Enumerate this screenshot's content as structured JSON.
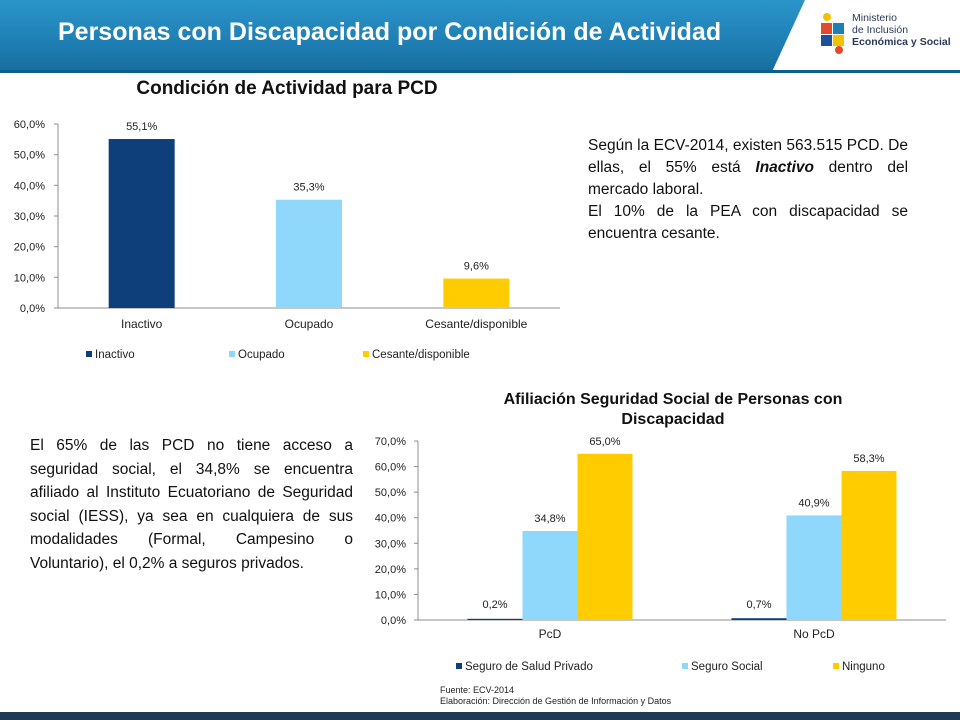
{
  "banner": {
    "title": "Personas con Discapacidad por Condición de Actividad"
  },
  "logo": {
    "line1": "Ministerio",
    "line2": "de Inclusión",
    "line3": "Económica y Social"
  },
  "colors": {
    "inactivo": "#0e3f7a",
    "ocupado": "#8fd8fb",
    "cesante": "#ffcc00",
    "banner": "#1f7fb4"
  },
  "text1": {
    "p1": "Según la ECV-2014, existen 563.515 PCD. De ellas, el 55% está ",
    "p1_em": "Inactivo",
    "p1_end": " dentro del mercado laboral.",
    "p2": "El 10% de la PEA con discapacidad se encuentra cesante."
  },
  "text2": "El 65% de las PCD no tiene acceso a seguridad social, el 34,8% se encuentra afiliado al Instituto Ecuatoriano de Seguridad social (IESS), ya sea en cualquiera de sus modalidades (Formal, Campesino o Voluntario), el 0,2% a seguros privados.",
  "footer": {
    "source": "Fuente: ECV-2014",
    "elaboration": "Elaboración: Dirección de Gestión de Información y Datos"
  },
  "chart_data": [
    {
      "type": "bar",
      "title": "Condición de Actividad para PCD",
      "categories": [
        "Inactivo",
        "Ocupado",
        "Cesante/disponible"
      ],
      "values": [
        55.1,
        35.3,
        9.6
      ],
      "labels": [
        "55,1%",
        "35,3%",
        "9,6%"
      ],
      "colors": [
        "#0e3f7a",
        "#8fd8fb",
        "#ffcc00"
      ],
      "ylim": [
        0,
        60
      ],
      "yticks": [
        "0,0%",
        "10,0%",
        "20,0%",
        "30,0%",
        "40,0%",
        "50,0%",
        "60,0%"
      ],
      "legend": [
        "Inactivo",
        "Ocupado",
        "Cesante/disponible"
      ],
      "legend_position": "bottom",
      "grid": false
    },
    {
      "type": "bar",
      "title": "Afiliación Seguridad Social de Personas con Discapacidad",
      "title_line1": "Afiliación Seguridad Social de Personas con",
      "title_line2": "Discapacidad",
      "categories": [
        "PcD",
        "No PcD"
      ],
      "series": [
        {
          "name": "Seguro de Salud Privado",
          "values": [
            0.2,
            0.7
          ],
          "labels": [
            "0,2%",
            "0,7%"
          ],
          "color": "#0e3f7a"
        },
        {
          "name": "Seguro Social",
          "values": [
            34.8,
            40.9
          ],
          "labels": [
            "34,8%",
            "40,9%"
          ],
          "color": "#8fd8fb"
        },
        {
          "name": "Ninguno",
          "values": [
            65.0,
            58.3
          ],
          "labels": [
            "65,0%",
            "58,3%"
          ],
          "color": "#ffcc00"
        }
      ],
      "ylim": [
        0,
        70
      ],
      "yticks": [
        "0,0%",
        "10,0%",
        "20,0%",
        "30,0%",
        "40,0%",
        "50,0%",
        "60,0%",
        "70,0%"
      ],
      "legend_position": "bottom",
      "grid": false
    }
  ]
}
